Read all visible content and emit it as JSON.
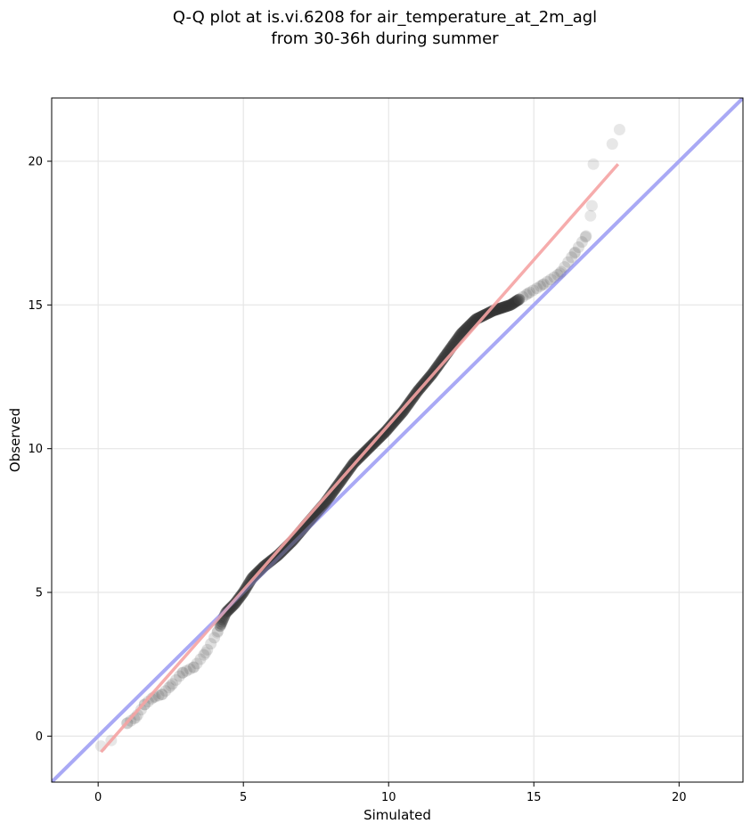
{
  "chart_data": {
    "type": "scatter",
    "title": [
      "Q-Q plot at is.vi.6208 for air_temperature_at_2m_agl",
      "from 30-36h during summer"
    ],
    "xlabel": "Simulated",
    "ylabel": "Observed",
    "xlim": [
      -1.6,
      22.2
    ],
    "ylim": [
      -1.6,
      22.2
    ],
    "xticks": [
      0,
      5,
      10,
      15,
      20
    ],
    "yticks": [
      0,
      5,
      10,
      15,
      20
    ],
    "grid": true,
    "colors": {
      "points": "#333333",
      "identity_line": "#aaaaf5",
      "fit_line": "#f5a3a3",
      "center_points": "#000000"
    },
    "reference_line": {
      "name": "",
      "x": [
        -1.6,
        22.2
      ],
      "y": [
        -1.6,
        22.2
      ]
    },
    "fit_line": {
      "name": "",
      "x": [
        0.1,
        17.9
      ],
      "y": [
        -0.55,
        19.9
      ]
    },
    "curve_points": [
      [
        0.1,
        -0.35
      ],
      [
        0.45,
        -0.15
      ],
      [
        1.0,
        0.45
      ],
      [
        1.3,
        0.65
      ],
      [
        1.6,
        1.1
      ],
      [
        1.9,
        1.35
      ],
      [
        2.2,
        1.45
      ],
      [
        2.5,
        1.75
      ],
      [
        2.9,
        2.2
      ],
      [
        3.3,
        2.4
      ],
      [
        3.7,
        2.9
      ],
      [
        4.1,
        3.6
      ],
      [
        4.4,
        4.3
      ],
      [
        4.7,
        4.6
      ],
      [
        5.0,
        5.0
      ],
      [
        5.3,
        5.5
      ],
      [
        5.7,
        5.9
      ],
      [
        6.2,
        6.3
      ],
      [
        6.7,
        6.8
      ],
      [
        7.2,
        7.4
      ],
      [
        7.8,
        8.1
      ],
      [
        8.3,
        8.8
      ],
      [
        8.8,
        9.5
      ],
      [
        9.4,
        10.1
      ],
      [
        9.9,
        10.6
      ],
      [
        10.5,
        11.3
      ],
      [
        11.0,
        12.0
      ],
      [
        11.5,
        12.6
      ],
      [
        12.0,
        13.3
      ],
      [
        12.5,
        14.0
      ],
      [
        13.0,
        14.5
      ],
      [
        13.6,
        14.8
      ],
      [
        14.2,
        15.0
      ],
      [
        14.8,
        15.4
      ],
      [
        15.3,
        15.7
      ],
      [
        15.9,
        16.1
      ],
      [
        16.4,
        16.8
      ],
      [
        16.8,
        17.4
      ],
      [
        16.95,
        18.1
      ],
      [
        17.0,
        18.45
      ],
      [
        17.05,
        19.9
      ],
      [
        17.7,
        20.6
      ],
      [
        17.95,
        21.1
      ]
    ]
  }
}
